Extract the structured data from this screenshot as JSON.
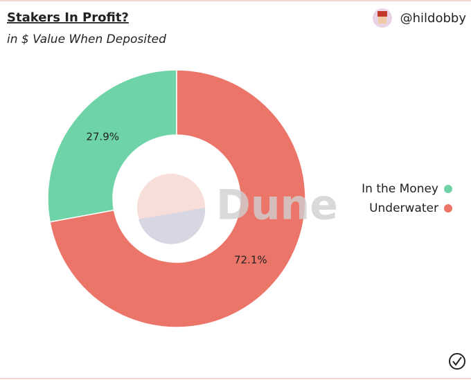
{
  "chart_data": {
    "type": "donut",
    "title": "Stakers In Profit?",
    "subtitle": "in $ Value When Deposited",
    "author": "@hildobby",
    "watermark": "Dune",
    "categories": [
      "In the Money",
      "Underwater"
    ],
    "values": [
      27.9,
      72.1
    ],
    "value_labels": [
      "27.9%",
      "72.1%"
    ],
    "colors": [
      "#6fd3a8",
      "#ec7569"
    ],
    "legend": "right"
  }
}
